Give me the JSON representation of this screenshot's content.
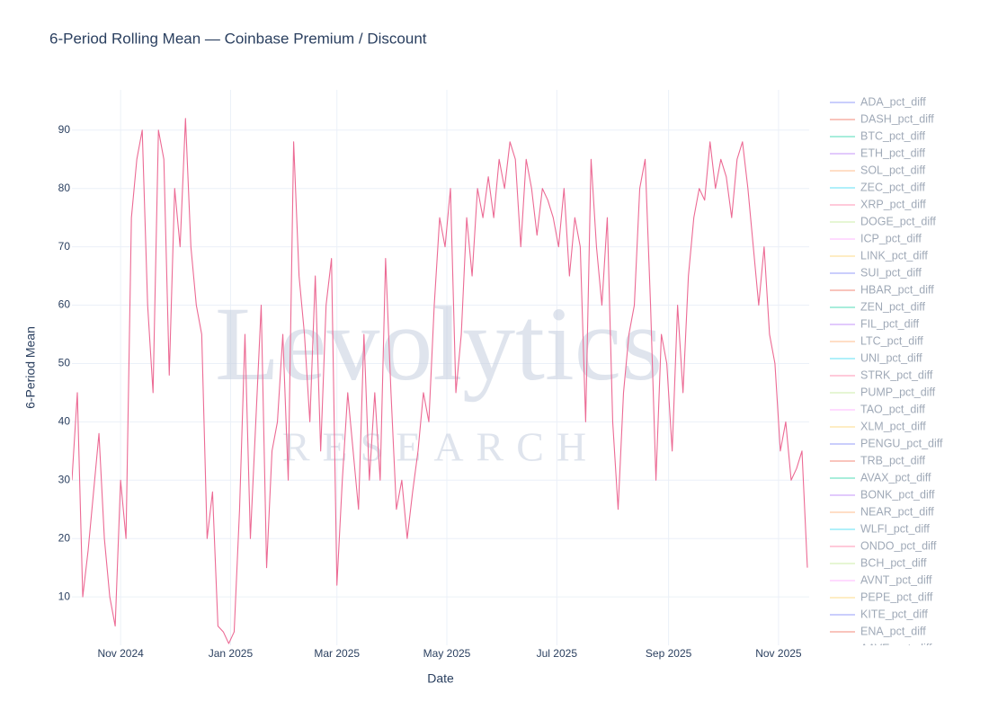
{
  "chart_data": {
    "type": "line",
    "title": "6-Period Rolling Mean — Coinbase Premium / Discount",
    "x_label": "Date",
    "y_label": "6-Period Mean",
    "watermark": {
      "main": "Levolytics",
      "sub": "RESEARCH"
    },
    "grid": true,
    "legend_position": "right",
    "legend_entries_hidden": true,
    "xlim": [
      "2024-10-05",
      "2025-11-18"
    ],
    "xticks": [
      {
        "value": "2024-11-01",
        "label": "Nov 2024"
      },
      {
        "value": "2025-01-01",
        "label": "Jan 2025"
      },
      {
        "value": "2025-03-01",
        "label": "Mar 2025"
      },
      {
        "value": "2025-05-01",
        "label": "May 2025"
      },
      {
        "value": "2025-07-01",
        "label": "Jul 2025"
      },
      {
        "value": "2025-09-01",
        "label": "Sep 2025"
      },
      {
        "value": "2025-11-01",
        "label": "Nov 2025"
      }
    ],
    "ylim": [
      1.7,
      96.9
    ],
    "yticks": [
      10,
      20,
      30,
      40,
      50,
      60,
      70,
      80,
      90
    ],
    "x": [
      "2024-10-05",
      "2024-10-08",
      "2024-10-11",
      "2024-10-14",
      "2024-10-17",
      "2024-10-20",
      "2024-10-23",
      "2024-10-26",
      "2024-10-29",
      "2024-11-01",
      "2024-11-04",
      "2024-11-07",
      "2024-11-10",
      "2024-11-13",
      "2024-11-16",
      "2024-11-19",
      "2024-11-22",
      "2024-11-25",
      "2024-11-28",
      "2024-12-01",
      "2024-12-04",
      "2024-12-07",
      "2024-12-10",
      "2024-12-13",
      "2024-12-16",
      "2024-12-19",
      "2024-12-22",
      "2024-12-25",
      "2024-12-28",
      "2024-12-31",
      "2025-01-03",
      "2025-01-06",
      "2025-01-09",
      "2025-01-12",
      "2025-01-15",
      "2025-01-18",
      "2025-01-21",
      "2025-01-24",
      "2025-01-27",
      "2025-01-30",
      "2025-02-02",
      "2025-02-05",
      "2025-02-08",
      "2025-02-11",
      "2025-02-14",
      "2025-02-17",
      "2025-02-20",
      "2025-02-23",
      "2025-02-26",
      "2025-03-01",
      "2025-03-04",
      "2025-03-07",
      "2025-03-10",
      "2025-03-13",
      "2025-03-16",
      "2025-03-19",
      "2025-03-22",
      "2025-03-25",
      "2025-03-28",
      "2025-03-31",
      "2025-04-03",
      "2025-04-06",
      "2025-04-09",
      "2025-04-12",
      "2025-04-15",
      "2025-04-18",
      "2025-04-21",
      "2025-04-24",
      "2025-04-27",
      "2025-04-30",
      "2025-05-03",
      "2025-05-06",
      "2025-05-09",
      "2025-05-12",
      "2025-05-15",
      "2025-05-18",
      "2025-05-21",
      "2025-05-24",
      "2025-05-27",
      "2025-05-30",
      "2025-06-02",
      "2025-06-05",
      "2025-06-08",
      "2025-06-11",
      "2025-06-14",
      "2025-06-17",
      "2025-06-20",
      "2025-06-23",
      "2025-06-26",
      "2025-06-29",
      "2025-07-02",
      "2025-07-05",
      "2025-07-08",
      "2025-07-11",
      "2025-07-14",
      "2025-07-17",
      "2025-07-20",
      "2025-07-23",
      "2025-07-26",
      "2025-07-29",
      "2025-08-01",
      "2025-08-04",
      "2025-08-07",
      "2025-08-10",
      "2025-08-13",
      "2025-08-16",
      "2025-08-19",
      "2025-08-22",
      "2025-08-25",
      "2025-08-28",
      "2025-08-31",
      "2025-09-03",
      "2025-09-06",
      "2025-09-09",
      "2025-09-12",
      "2025-09-15",
      "2025-09-18",
      "2025-09-21",
      "2025-09-24",
      "2025-09-27",
      "2025-09-30",
      "2025-10-03",
      "2025-10-06",
      "2025-10-09",
      "2025-10-12",
      "2025-10-15",
      "2025-10-18",
      "2025-10-21",
      "2025-10-24",
      "2025-10-27",
      "2025-10-30",
      "2025-11-02",
      "2025-11-05",
      "2025-11-08",
      "2025-11-11",
      "2025-11-14",
      "2025-11-17"
    ],
    "series": [
      {
        "color": "#ec6a94",
        "values": [
          30,
          45,
          10,
          18,
          28,
          38,
          20,
          10,
          5,
          30,
          20,
          75,
          85,
          90,
          60,
          45,
          90,
          85,
          48,
          80,
          70,
          92,
          70,
          60,
          55,
          20,
          28,
          5,
          4,
          2,
          4,
          25,
          55,
          20,
          40,
          60,
          15,
          35,
          40,
          55,
          30,
          88,
          65,
          55,
          40,
          65,
          35,
          60,
          68,
          12,
          30,
          45,
          35,
          25,
          55,
          30,
          45,
          30,
          68,
          45,
          25,
          30,
          20,
          28,
          35,
          45,
          40,
          60,
          75,
          70,
          80,
          45,
          55,
          75,
          65,
          80,
          75,
          82,
          75,
          85,
          80,
          88,
          85,
          70,
          85,
          80,
          72,
          80,
          78,
          75,
          70,
          80,
          65,
          75,
          70,
          40,
          85,
          70,
          60,
          75,
          40,
          25,
          45,
          55,
          60,
          80,
          85,
          60,
          30,
          55,
          50,
          35,
          60,
          45,
          65,
          75,
          80,
          78,
          88,
          80,
          85,
          82,
          75,
          85,
          88,
          80,
          70,
          60,
          70,
          55,
          50,
          35,
          40,
          30,
          32,
          35,
          15
        ]
      }
    ],
    "legend_entries": [
      {
        "name": "ADA_pct_diff",
        "color": "#636efa"
      },
      {
        "name": "DASH_pct_diff",
        "color": "#ef553b"
      },
      {
        "name": "BTC_pct_diff",
        "color": "#00cc96"
      },
      {
        "name": "ETH_pct_diff",
        "color": "#ab63fa"
      },
      {
        "name": "SOL_pct_diff",
        "color": "#ffa15a"
      },
      {
        "name": "ZEC_pct_diff",
        "color": "#19d3f3"
      },
      {
        "name": "XRP_pct_diff",
        "color": "#ff6692"
      },
      {
        "name": "DOGE_pct_diff",
        "color": "#b6e880"
      },
      {
        "name": "ICP_pct_diff",
        "color": "#ff97ff"
      },
      {
        "name": "LINK_pct_diff",
        "color": "#fecb52"
      },
      {
        "name": "SUI_pct_diff",
        "color": "#636efa"
      },
      {
        "name": "HBAR_pct_diff",
        "color": "#ef553b"
      },
      {
        "name": "ZEN_pct_diff",
        "color": "#00cc96"
      },
      {
        "name": "FIL_pct_diff",
        "color": "#ab63fa"
      },
      {
        "name": "LTC_pct_diff",
        "color": "#ffa15a"
      },
      {
        "name": "UNI_pct_diff",
        "color": "#19d3f3"
      },
      {
        "name": "STRK_pct_diff",
        "color": "#ff6692"
      },
      {
        "name": "PUMP_pct_diff",
        "color": "#b6e880"
      },
      {
        "name": "TAO_pct_diff",
        "color": "#ff97ff"
      },
      {
        "name": "XLM_pct_diff",
        "color": "#fecb52"
      },
      {
        "name": "PENGU_pct_diff",
        "color": "#636efa"
      },
      {
        "name": "TRB_pct_diff",
        "color": "#ef553b"
      },
      {
        "name": "AVAX_pct_diff",
        "color": "#00cc96"
      },
      {
        "name": "BONK_pct_diff",
        "color": "#ab63fa"
      },
      {
        "name": "NEAR_pct_diff",
        "color": "#ffa15a"
      },
      {
        "name": "WLFI_pct_diff",
        "color": "#19d3f3"
      },
      {
        "name": "ONDO_pct_diff",
        "color": "#ff6692"
      },
      {
        "name": "BCH_pct_diff",
        "color": "#b6e880"
      },
      {
        "name": "AVNT_pct_diff",
        "color": "#ff97ff"
      },
      {
        "name": "PEPE_pct_diff",
        "color": "#fecb52"
      },
      {
        "name": "KITE_pct_diff",
        "color": "#636efa"
      },
      {
        "name": "ENA_pct_diff",
        "color": "#ef553b"
      },
      {
        "name": "AAVE_pct_diff",
        "color": "#00cc96"
      }
    ]
  }
}
